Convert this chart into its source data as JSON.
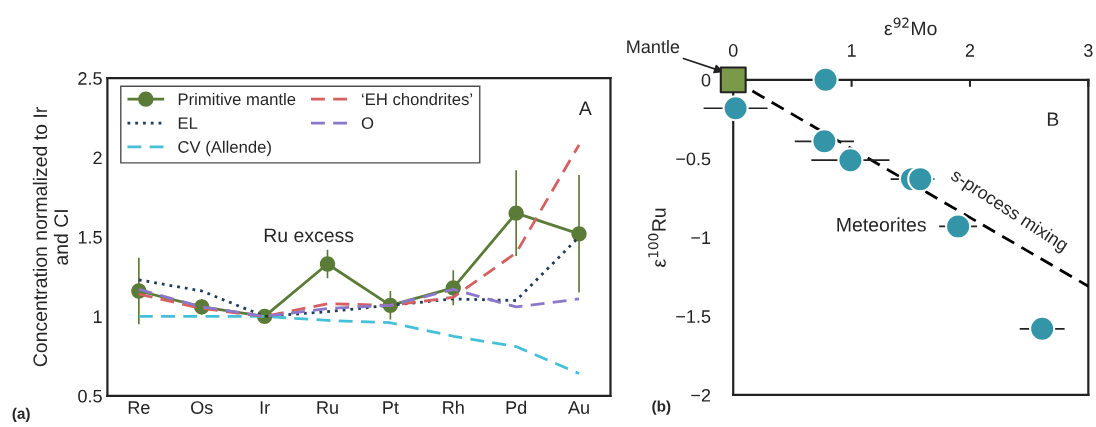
{
  "chart_data": [
    {
      "type": "line",
      "ylabel": "Concentration normalized to Ir\nand CI",
      "categories": [
        "Re",
        "Os",
        "Ir",
        "Ru",
        "Pt",
        "Rh",
        "Pd",
        "Au"
      ],
      "ylim": [
        0.5,
        2.5
      ],
      "yticks": [
        0.5,
        1,
        1.5,
        2,
        2.5
      ],
      "legend": "top left",
      "grid": false,
      "series": [
        {
          "name": "Primitive mantle",
          "color": "#5b7b38",
          "values": [
            1.16,
            1.06,
            1.0,
            1.33,
            1.07,
            1.18,
            1.65,
            1.52
          ],
          "errors": [
            0.21,
            0.05,
            null,
            0.09,
            0.09,
            0.11,
            0.27,
            0.37
          ],
          "marker": "circle",
          "line_style": "solid"
        },
        {
          "name": "EL",
          "color": "#1f3a5a",
          "values": [
            1.23,
            1.16,
            1.0,
            1.03,
            1.07,
            1.11,
            1.1,
            1.5
          ],
          "marker": "none",
          "line_style": "dotted"
        },
        {
          "name": "CV (Allende)",
          "color": "#45c0d8",
          "values": [
            1.0,
            1.0,
            1.0,
            0.975,
            0.96,
            0.875,
            0.81,
            0.64
          ],
          "marker": "none",
          "line_style": "dashed"
        },
        {
          "name": "‘EH chondrites’",
          "color": "#d65f5f",
          "values": [
            1.14,
            1.05,
            1.0,
            1.08,
            1.07,
            1.12,
            1.4,
            2.08
          ],
          "marker": "none",
          "line_style": "dashed"
        },
        {
          "name": "O",
          "color": "#8a78c8",
          "values": [
            1.17,
            1.06,
            1.0,
            1.05,
            1.07,
            1.17,
            1.06,
            1.11
          ],
          "marker": "none",
          "line_style": "dashed"
        }
      ],
      "annotations": [
        "Ru excess",
        "A",
        "(a)"
      ]
    },
    {
      "type": "scatter",
      "xlabel": "ε$^{92}$Mo",
      "ylabel": "ε$^{100}$Ru",
      "xlim": [
        0,
        3
      ],
      "xticks": [
        0,
        1,
        2,
        3
      ],
      "ylim": [
        -2,
        0
      ],
      "yticks": [
        {
          "value": -2,
          "label": "−2"
        },
        {
          "value": -1.5,
          "label": "−1.5"
        },
        {
          "value": -1,
          "label": "−1"
        },
        {
          "value": -0.5,
          "label": "−0.5"
        },
        0
      ],
      "grid": false,
      "legend": false,
      "series": [
        {
          "type": "line",
          "color": "#000000",
          "x": [
            0,
            3
          ],
          "values": [
            0,
            -1.31
          ],
          "marker": "none",
          "line_style": "dashed"
        },
        {
          "type": "scatter",
          "color": "#3595a8",
          "x": [
            0.78,
            0.02,
            0.77,
            0.99,
            1.51,
            1.58,
            1.9,
            2.61
          ],
          "values": [
            0,
            -0.18,
            -0.39,
            -0.51,
            -0.63,
            -0.63,
            -0.93,
            -1.58
          ],
          "xerrors": [
            0.28,
            0.27,
            0.25,
            0.33,
            0.18,
            0.12,
            0.16,
            0.19
          ],
          "marker": "circle"
        },
        {
          "type": "scatter",
          "color": "#7a9a4a",
          "x": [
            0
          ],
          "values": [
            0
          ],
          "marker": "square"
        }
      ],
      "annotations": [
        "Mantle",
        "Meteorites",
        "s-process mixing",
        "B",
        "(b)"
      ]
    }
  ]
}
